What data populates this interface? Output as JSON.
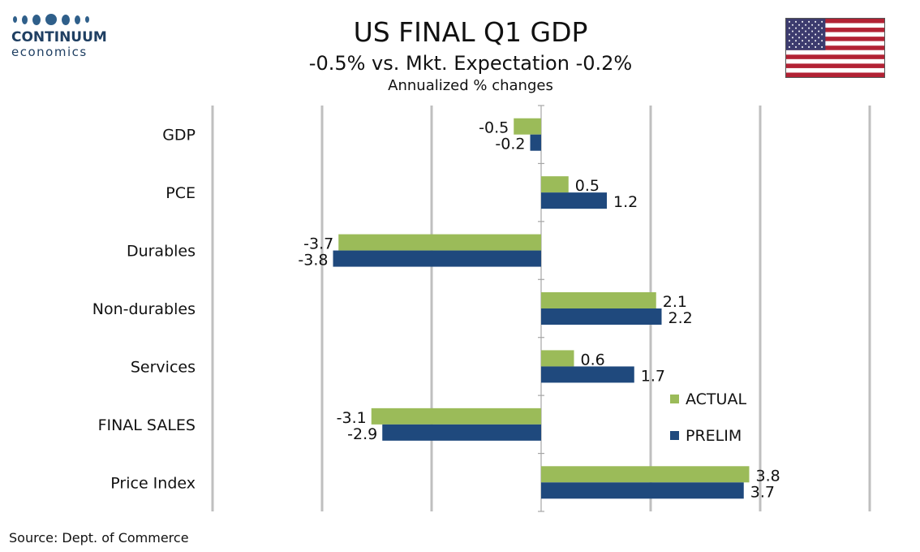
{
  "logo": {
    "name": "CONTINUUM",
    "sub": "economics"
  },
  "header": {
    "title": "US FINAL Q1 GDP",
    "subtitle": "-0.5% vs. Mkt. Expectation -0.2%",
    "subsubtitle": "Annualized % changes"
  },
  "flag": {
    "name": "us-flag-icon",
    "colors": {
      "red": "#b22234",
      "white": "#ffffff",
      "blue": "#3c3b6e"
    }
  },
  "source": "Source: Dept. of Commerce",
  "chart_data": {
    "type": "bar",
    "orientation": "horizontal",
    "categories": [
      "GDP",
      "PCE",
      "Durables",
      "Non-durables",
      "Services",
      "FINAL SALES",
      "Price Index"
    ],
    "series": [
      {
        "name": "ACTUAL",
        "color": "#9bbb59",
        "values": [
          -0.5,
          0.5,
          -3.7,
          2.1,
          0.6,
          -3.1,
          3.8
        ]
      },
      {
        "name": "PRELIM",
        "color": "#1f497d",
        "values": [
          -0.2,
          1.2,
          -3.8,
          2.2,
          1.7,
          -2.9,
          3.7
        ]
      }
    ],
    "xlim": [
      -6,
      6
    ],
    "grid": true,
    "legend": "lower-right"
  }
}
